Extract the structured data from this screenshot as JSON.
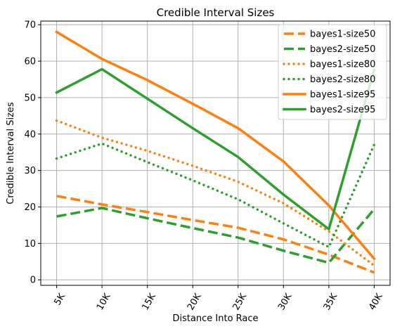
{
  "chart_data": {
    "type": "line",
    "title": "Credible Interval Sizes",
    "xlabel": "Distance Into Race",
    "ylabel": "Credible Interval Sizes",
    "categories": [
      "5K",
      "10K",
      "15K",
      "20K",
      "25K",
      "30K",
      "35K",
      "40K"
    ],
    "ylim": [
      -1.5,
      71
    ],
    "yticks": [
      0,
      10,
      20,
      30,
      40,
      50,
      60,
      70
    ],
    "grid": true,
    "legend_position": "top-right",
    "series": [
      {
        "name": "bayes1-size50",
        "color": "#ff7f0e",
        "style": "dashed",
        "values": [
          23.0,
          20.7,
          18.6,
          16.4,
          14.3,
          11.1,
          6.9,
          2.0
        ]
      },
      {
        "name": "bayes2-size50",
        "color": "#2ca02c",
        "style": "dashed",
        "values": [
          17.4,
          19.7,
          16.9,
          14.2,
          11.6,
          8.0,
          4.7,
          19.4
        ]
      },
      {
        "name": "bayes1-size80",
        "color": "#ff7f0e",
        "style": "dotted",
        "values": [
          43.7,
          39.0,
          35.4,
          31.3,
          26.9,
          21.0,
          13.3,
          3.9
        ]
      },
      {
        "name": "bayes2-size80",
        "color": "#2ca02c",
        "style": "dotted",
        "values": [
          33.3,
          37.4,
          32.3,
          27.3,
          22.1,
          15.5,
          9.0,
          37.1
        ]
      },
      {
        "name": "bayes1-size95",
        "color": "#ff7f0e",
        "style": "solid",
        "values": [
          68.0,
          60.6,
          54.8,
          48.3,
          41.6,
          32.5,
          20.4,
          5.8
        ]
      },
      {
        "name": "bayes2-size95",
        "color": "#2ca02c",
        "style": "solid",
        "values": [
          51.4,
          57.8,
          49.7,
          41.6,
          33.7,
          23.4,
          13.9,
          57.6
        ]
      }
    ]
  }
}
